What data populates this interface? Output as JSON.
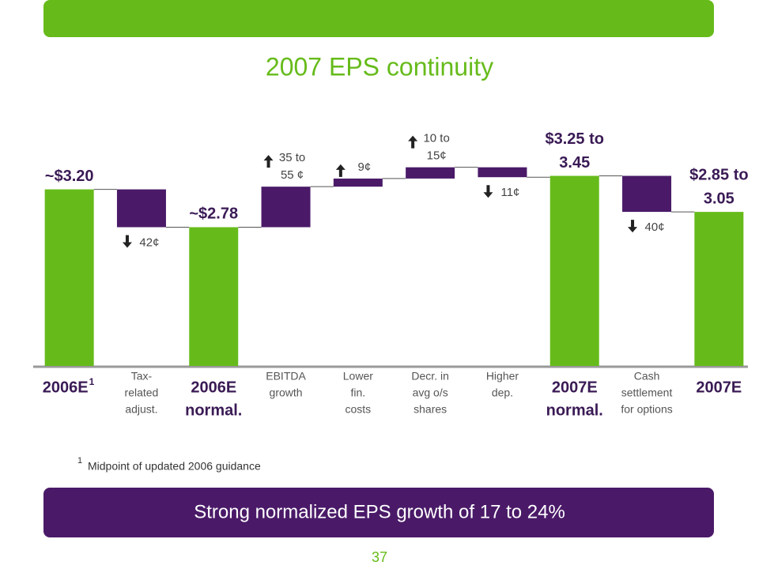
{
  "chart_data": {
    "type": "waterfall",
    "title": "2007 EPS continuity",
    "categories": [
      [
        "2006E"
      ],
      [
        "Tax-",
        "related",
        "adjust."
      ],
      [
        "2006E",
        "normal."
      ],
      [
        "EBITDA",
        "growth"
      ],
      [
        "Lower",
        "fin.",
        "costs"
      ],
      [
        "Decr. in",
        "avg o/s",
        "shares"
      ],
      [
        "Higher",
        "dep."
      ],
      [
        "2007E",
        "normal."
      ],
      [
        "Cash",
        "settlement",
        "for options"
      ],
      [
        "2007E"
      ]
    ],
    "is_total": [
      true,
      false,
      true,
      false,
      false,
      false,
      false,
      true,
      false,
      true
    ],
    "values": [
      3.2,
      -0.42,
      2.78,
      0.45,
      0.09,
      0.125,
      -0.11,
      3.35,
      -0.4,
      2.95
    ],
    "value_labels": [
      [
        "~$3.20"
      ],
      [
        "42¢"
      ],
      [
        "~$2.78"
      ],
      [
        "35 to",
        "55 ¢"
      ],
      [
        "9¢"
      ],
      [
        "10 to",
        "15¢"
      ],
      [
        "11¢"
      ],
      [
        "$3.25 to",
        "3.45"
      ],
      [
        "40¢"
      ],
      [
        "$2.85 to",
        "3.05"
      ]
    ],
    "total_color": "#66bb1a",
    "delta_color": "#4a1a68",
    "ylim": [
      1.24,
      3.6
    ],
    "footnote": {
      "marker": "1",
      "text": "Midpoint of updated 2006 guidance"
    },
    "callout": "Strong normalized EPS growth of 17 to 24%",
    "page_number": "37"
  }
}
